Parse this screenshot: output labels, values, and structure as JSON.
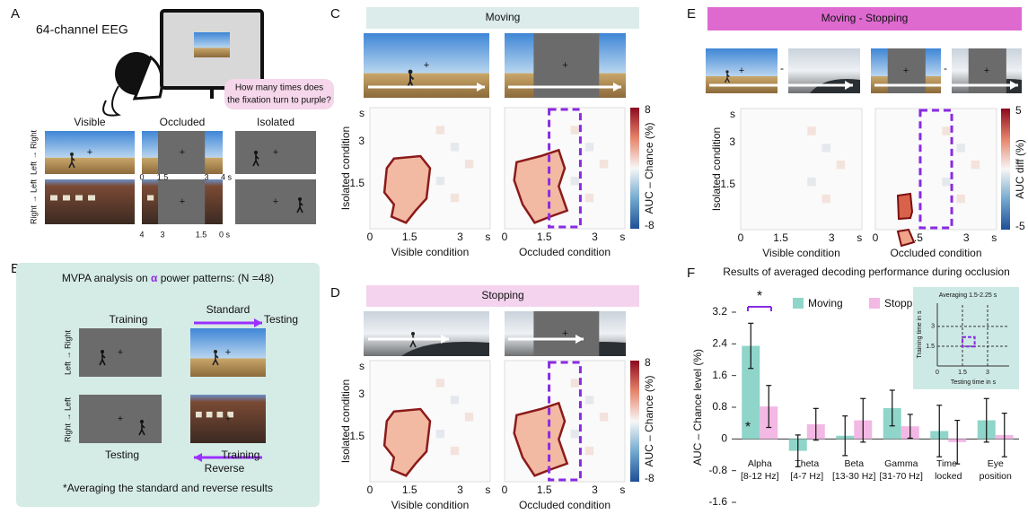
{
  "panel_a": {
    "label": "A",
    "eeg": "64-channel EEG",
    "question": [
      "How many times does",
      "the fixation turn to purple?"
    ],
    "columns": [
      "Visible",
      "Occluded",
      "Isolated"
    ],
    "rows": [
      "Left → Right",
      "Right → Left"
    ],
    "timeline_top": [
      "0",
      "1.5",
      "3",
      "4 s"
    ],
    "timeline_bottom": [
      "4",
      "3",
      "1.5",
      "0 s"
    ]
  },
  "panel_b": {
    "label": "B",
    "title": [
      "MVPA analysis on ",
      "α",
      " power patterns: (N =48)"
    ],
    "training": "Training",
    "standard": "Standard",
    "testing": "Testing",
    "rows": [
      "Left → Right",
      "Right → Left"
    ],
    "testing2": "Testing",
    "reverse": "Reverse",
    "training2": "Training",
    "note": "*Averaging the standard and reverse results"
  },
  "panel_c": {
    "label": "C",
    "header": "Moving",
    "y_label": "Isolated condition",
    "x_labels": [
      "Visible condition",
      "Occluded condition"
    ],
    "colorbar_label": "AUC – Chance (%)",
    "colorbar_ticks": [
      "8",
      "-8"
    ],
    "x_ticks": [
      "0",
      "1.5",
      "3",
      "s"
    ],
    "y_ticks": [
      "s",
      "3",
      "1.5"
    ]
  },
  "panel_d": {
    "label": "D",
    "header": "Stopping",
    "y_label": "Isolated condition",
    "x_labels": [
      "Visible condition",
      "Occluded condition"
    ],
    "colorbar_label": "AUC – Chance (%)",
    "colorbar_ticks": [
      "8",
      "-8"
    ],
    "x_ticks": [
      "0",
      "1.5",
      "3",
      "s"
    ],
    "y_ticks": [
      "s",
      "3",
      "1.5"
    ]
  },
  "panel_e": {
    "label": "E",
    "header": "Moving - Stopping",
    "minus": [
      "-",
      "-"
    ],
    "y_label": "Isolated condition",
    "x_labels": [
      "Visible condition",
      "Occluded condition"
    ],
    "colorbar_label": "AUC diff (%)",
    "colorbar_ticks": [
      "5",
      "-5"
    ],
    "x_ticks": [
      "0",
      "1.5",
      "3",
      "s"
    ],
    "y_ticks": [
      "s",
      "3",
      "1.5"
    ]
  },
  "panel_f": {
    "label": "F"
  },
  "chart_data": {
    "type": "bar",
    "title": "Results of averaged decoding performance during occlusion",
    "ylabel": "AUC – Chance level (%)",
    "categories": [
      [
        "Alpha",
        "[8-12 Hz]"
      ],
      [
        "Theta",
        "[4-7 Hz]"
      ],
      [
        "Beta",
        "[13-30 Hz]"
      ],
      [
        "Gamma",
        "[31-70 Hz]"
      ],
      [
        "Time-",
        "locked"
      ],
      [
        "Eye",
        "position"
      ]
    ],
    "series": [
      {
        "name": "Moving",
        "color": "#8fd5c9",
        "values": [
          2.35,
          -0.3,
          0.08,
          0.78,
          0.2,
          0.47
        ],
        "errors": [
          0.57,
          0.4,
          0.5,
          0.45,
          0.65,
          0.55
        ]
      },
      {
        "name": "Stopping",
        "color": "#f3b8e4",
        "values": [
          0.82,
          0.37,
          0.47,
          0.32,
          -0.08,
          0.1
        ],
        "errors": [
          0.53,
          0.4,
          0.55,
          0.3,
          0.55,
          0.55
        ]
      }
    ],
    "ylim": [
      -1.6,
      3.2
    ],
    "yticks": [
      -1.6,
      -0.8,
      0,
      0.8,
      1.6,
      2.4,
      3.2
    ],
    "significance": [
      "*",
      "*"
    ],
    "inset": {
      "title": "Averaging 1.5-2.25 s",
      "xlabel": "Testing time in s",
      "ylabel": "Training time in s",
      "x_ticks": [
        "0",
        "1.5",
        "3"
      ],
      "y_ticks": [
        "1.5",
        "3"
      ]
    }
  }
}
